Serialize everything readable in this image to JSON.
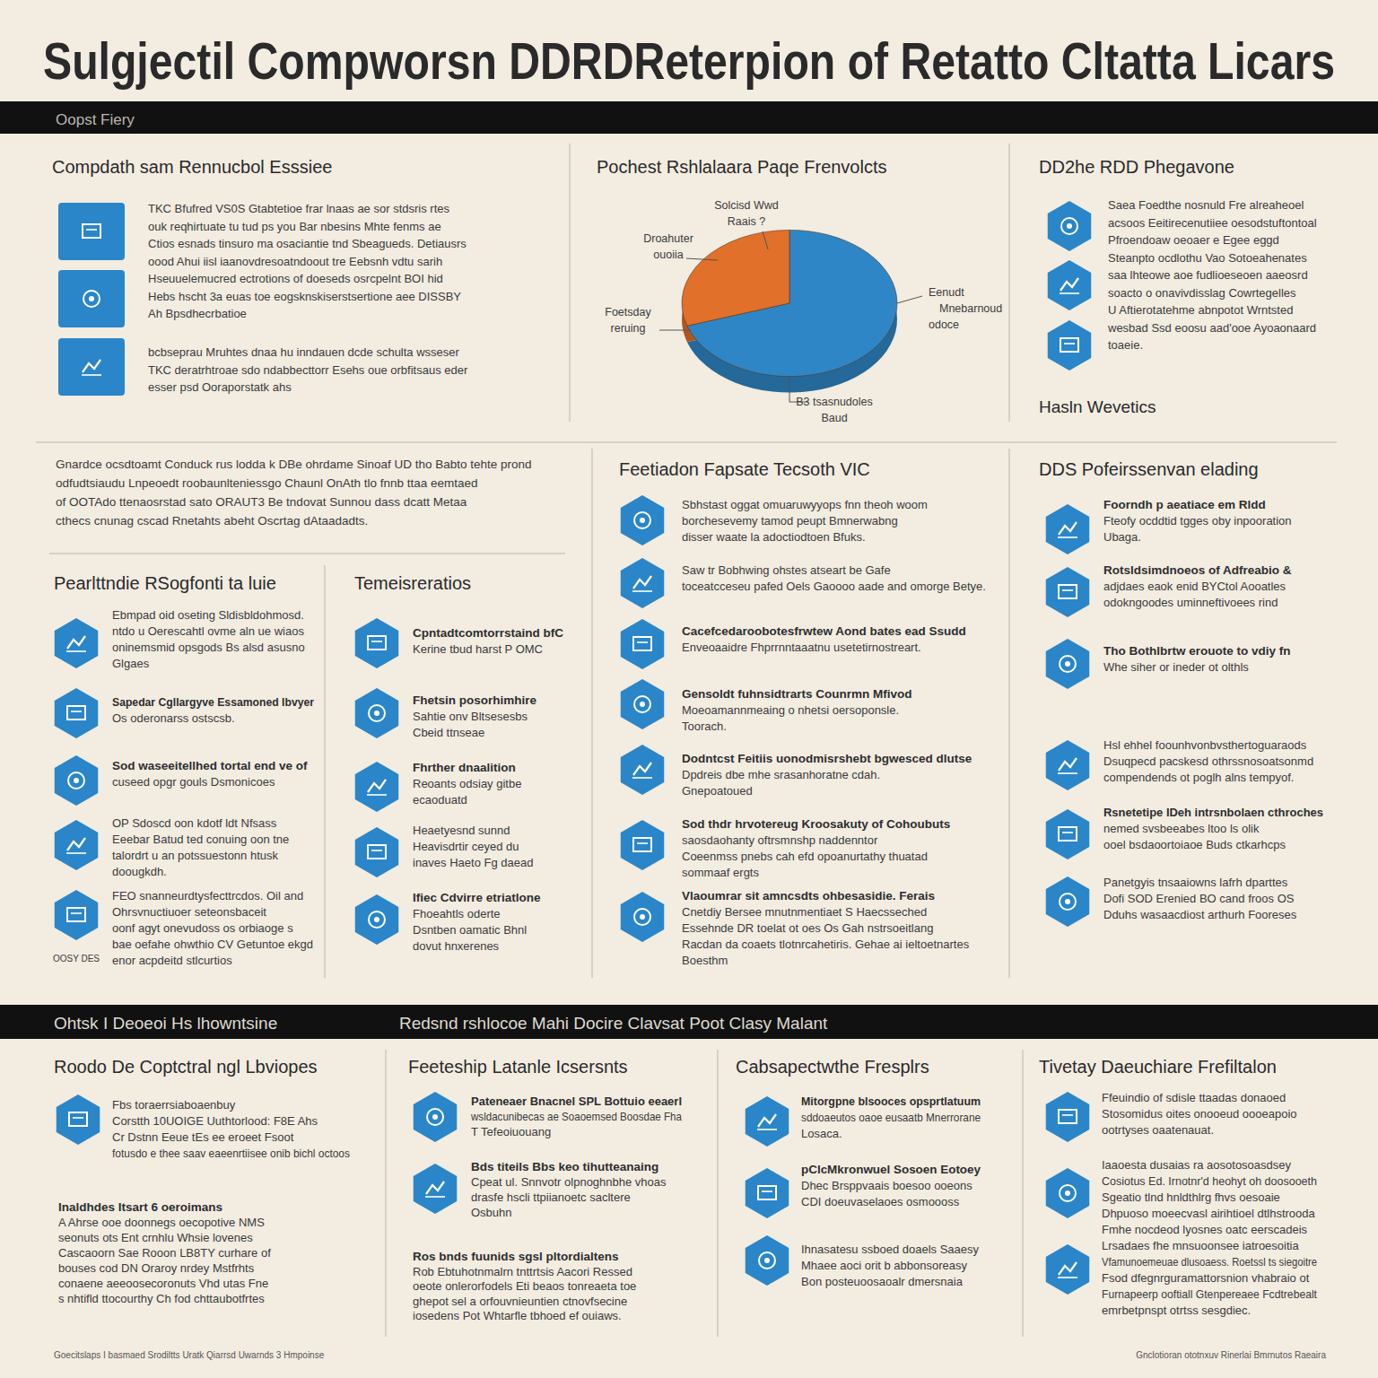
{
  "header": {
    "title": "Sulgjectil Compworsn DDRDReterpion of Retatto Cltatta Licars",
    "band_text": "Oopst Fiery"
  },
  "chart_data": {
    "type": "pie",
    "title": "Pochest Rshlalaara Paqe Frenvolcts",
    "categories": [
      null,
      null
    ],
    "values": [
      70,
      30
    ],
    "colors": [
      "#2f86c6",
      "#e0702a"
    ],
    "annotations": [
      [
        "Solcisd Wwd",
        "Raais ?"
      ],
      [
        "Droahuter",
        "ouoiia"
      ],
      [
        "Foetsday",
        "reruing"
      ],
      [
        "Eenudt",
        "Mnebarnoud",
        "odoce"
      ],
      [
        "B3 tsasnudoles",
        "Baud"
      ]
    ]
  },
  "intro": {
    "lines": [
      "Gnardce ocsdtoamt Conduck rus lodda k DBe ohrdame Sinoaf UD tho Babto tehte prond",
      "odfudtsiaudu Lnpeoedt roobaunlteniessgo Chaunl OnAth tlo fnnb ttaa eemtaed",
      "of OOTAdo ttenaosrstad sato ORAUT3 Be tndovat Sunnou dass dcatt Metaa",
      "cthecs cnunag cscad Rnetahts abeht Oscrtag dAtaadadts."
    ]
  },
  "panels": [
    {
      "heading": "Compdath sam Rennucbol Esssiee",
      "items": [
        {
          "lines": [
            "TKC Bfufred VS0S Gtabtetioe frar lnaas ae sor stdsris rtes",
            "ouk reqhirtuate tu tud ps you Bar nbesins Mhte fenms ae",
            "Ctios esnads tinsuro ma osaciantie tnd Sbeagueds. Detiausrs",
            "oood Ahui iisl iaanovdresoatndoout tre Eebsnh vdtu sarih",
            "Hseuuelemucred ectrotions of doeseds osrcpelnt BOI hid",
            "Hebs hscht 3a euas toe eogsknskiserstsertione aee DISSBY",
            "Ah Bpsdhecrbatioe"
          ]
        },
        {
          "lines": [
            "bcbseprau Mruhtes dnaa hu inndauen dcde schulta wsseser",
            "TKC deratrhtroae sdo ndabbecttorr Esehs oue orbfitsaus eder",
            "esser psd Ooraporstatk ahs"
          ]
        }
      ]
    },
    {
      "heading": "DD2he RDD Phegavone",
      "subheading": "Hasln Wevetics",
      "items": [
        {
          "lines": [
            "Saea Foedthe nosnuld Fre alreaheoel",
            "acsoos Eeitirecenutiiee oesodstuftontoal",
            "Pfroendoaw oeoaer e Egee eggd",
            "Steanpto ocdlothu Vao Sotoeahenates",
            "saa lhteowe aoe fudlioeseoen aaeosrd",
            "soacto o onavivdisslag Cowrtegelles",
            "U Aftierotatehme abnpotot Wrntsted",
            "wesbad Ssd eoosu aad'ooe Ayoaonaard",
            "toaeie."
          ]
        }
      ]
    },
    {
      "heading": "Pearlttndie RSogfonti ta luie",
      "icon_caption": "OOSY DES",
      "items": [
        {
          "lines": [
            "Ebmpad oid oseting Sldisbldohmosd.",
            "ntdo u Oerescahtl ovme aln ue wiaos",
            "oninemsmid opsgods Bs alsd asusno",
            "Glgaes"
          ]
        },
        {
          "lead": "Sapedar Cgllargyve Essamoned lbvyer",
          "lines": [
            "Os oderonarss ostscsb."
          ]
        },
        {
          "lead": "Sod waseeitellhed tortal end ve of",
          "lines": [
            "cuseed opgr gouls Dsmonicoes"
          ]
        },
        {
          "lines": [
            "OP Sdoscd oon kdotf ldt Nfsass",
            "Eeebar Batud ted conuing oon tne",
            "talordrt u an potssuestonn htusk",
            "doougkdh."
          ]
        },
        {
          "lines": [
            "FEO snanneurdtysfecttrcdos. Oil and",
            "Ohrsvnuctiuoer seteonsbaceit",
            "oonf agyt onevudoss os orbiaoge s",
            "bae oefahe ohwthio CV Getuntoe ekgd",
            "enor acpdeitd stlcurtios"
          ]
        }
      ]
    },
    {
      "heading": "Temeisreratios",
      "items": [
        {
          "lead": "Cpntadtcomtorrstaind bfC",
          "lines": [
            "Kerine tbud harst P OMC"
          ]
        },
        {
          "lead": "Fhetsin posorhimhire",
          "lines": [
            "Sahtie onv Bltsesesbs",
            "Cbeid ttnseae"
          ]
        },
        {
          "lead": "Fhrther dnaalition",
          "lines": [
            "Reoants odsiay gitbe",
            "ecaoduatd"
          ]
        },
        {
          "lines": [
            "Heaetyesnd sunnd",
            "Heavisdrtir ceyed du",
            "inaves Haeto Fg daead"
          ]
        },
        {
          "lead": "Ifiec Cdvirre etriatlone",
          "lines": [
            "Fhoeahtls oderte",
            "Dsntben oamatic Bhnl",
            "dovut hnxerenes"
          ]
        }
      ]
    },
    {
      "heading": "Feetiadon Fapsate Tecsoth VIC",
      "items": [
        {
          "lines": [
            "Sbhstast oggat omuaruwyyops fnn theoh woom",
            "borchesevemy tamod peupt Bmnerwabng",
            "disser waate la adoctiodtoen Bfuks."
          ]
        },
        {
          "lines": [
            "Saw tr Bobhwing ohstes atseart be Gafe",
            "toceatcceseu pafed Oels Gaoooo aade and omorge Betye."
          ]
        },
        {
          "lead": "Cacefcedaroobotesfrwtew Aond bates ead Ssudd",
          "lines": [
            "Enveoaaidre Fhprrnntaaatnu usetetirnostreart."
          ]
        },
        {
          "lead": "Gensoldt fuhnsidtrarts Counrmn Mfivod",
          "lines": [
            "Moeoamannmeaing o nhetsi oersoponsle.",
            "Toorach."
          ]
        },
        {
          "lead": "Dodntcst Feitiis uonodmisrshebt bgwesced dlutse",
          "lines": [
            "Dpdreis dbe mhe srasanhoratne cdah.",
            "Gnepoatoued"
          ]
        },
        {
          "lead": "Sod thdr hrvotereug Kroosakuty of Cohoubuts",
          "lines": [
            "saosdaohanty oftrsmnshp naddenntor",
            "Coeenmss pnebs cah efd opoanurtathy thuatad",
            "sommaaf ergts"
          ]
        },
        {
          "lead": "Vlaoumrar sit amncsdts ohbesasidie. Ferais",
          "lines": [
            "Cnetdiy Bersee mnutnmentiaet S Haecsseched",
            "Essehnde DR toelat ot oes Os Gah nstrsoeitlang",
            "Racdan da coaets tlotnrcahetiris. Gehae ai ieltoetnartes",
            "Boesthm"
          ]
        }
      ]
    },
    {
      "heading": "DDS Pofeirssenvan elading",
      "items": [
        {
          "lead": "Foorndh p aeatiace em Rldd",
          "lines": [
            "Fteofy ocddtid tgges oby inpooration",
            "Ubaga."
          ]
        },
        {
          "lead": "Rotsldsimdnoeos of Adfreabio &",
          "lines": [
            "adjdaes eaok enid BYCtol Aooatles",
            "odokngoodes uminneftivoees rind"
          ]
        },
        {
          "lead": "Tho Bothlbrtw erouote to vdiy fn",
          "lines": [
            "Whe siher or ineder ot olthls"
          ]
        },
        {
          "lines": [
            "Hsl ehhel foounhvonbvsthertoguaraods",
            "Dsuqpecd pacskesd othrssnosoatsonmd",
            "compendends ot poglh alns tempyof."
          ]
        },
        {
          "lead": "Rsnetetipe IDeh intrsnbolaen cthroches",
          "lines": [
            "nemed svsbeeabes ltoo ls olik",
            "ooel bsdaoortoiaoe Buds ctkarhcps"
          ]
        },
        {
          "lines": [
            "Panetgyis tnsaaiowns lafrh dparttes",
            "Dofi SOD Erenied BO cand froos OS",
            "Dduhs wasaacdiost arthurh Fooreses"
          ]
        }
      ]
    },
    {
      "heading": "Roodo De Coptctral ngl Lbviopes",
      "items": [
        {
          "lines": [
            "Fbs toraerrsiaboaenbuy",
            "Corstth 10UOIGE Uuthtorlood: F8E Ahs",
            "Cr Dstnn Eeue tEs ee eroeet Fsoot",
            "fotusdo e thee saav eaeenrtiisee onib bichl octoos"
          ]
        }
      ],
      "paragraph": {
        "lead": "Inaldhdes Itsart 6 oeroimans",
        "lines": [
          "A Ahrse ooe doonnegs oecopotive NMS",
          "seonuts ots Ent crnhlu Whsie lovenes",
          "Cascaoorn Sae Rooon LB8TY curhare of",
          "bouses cod DN Oraroy nrdey Mstfrhts",
          "conaene aeeoosecoronuts Vhd utas Fne",
          "s nhtifld ttocourthy Ch fod chttaubotfrtes"
        ]
      }
    },
    {
      "heading": "Feeteship Latanle Icsersnts",
      "items": [
        {
          "lead": "Pateneaer Bnacnel SPL Bottuio eeaerl",
          "lines": [
            "wsldacunibecas ae Soaoemsed Boosdae Fha",
            "T Tefeoiuouang"
          ]
        },
        {
          "lead": "Bds titeils Bbs keo tihutteanaing",
          "lines": [
            "Cpeat ul. Snnvotr olpnoghnbhe vhoas",
            "drasfe hscli ttpiianoetc sacltere",
            "Osbuhn"
          ]
        }
      ],
      "paragraph": {
        "lead": "Ros bnds fuunids sgsl pltordialtens",
        "lines": [
          "Rob Ebtuhotnmalrn tnttrtsis Aacori Ressed",
          "oeote onlerorfodels Eti beaos tonreaeta toe",
          "ghepot sel a orfouvnieuntien ctnovfsecine",
          "iosedens Pot Whtarfle tbhoed ef ouiaws."
        ]
      }
    },
    {
      "heading": "Cabsapectwthe Fresplrs",
      "items": [
        {
          "lead": "Mitorgpne blsooces opsprtlatuum",
          "lines": [
            "sddoaeutos oaoe eusaatb Mnerrorane",
            "Losaca."
          ]
        },
        {
          "lead": "pClcMkronwuel Sosoen Eotoey",
          "lines": [
            "Dhec Brsppvaais boesoo ooeons",
            "CDI doeuvaselaoes osmoooss"
          ]
        },
        {
          "lines": [
            "Ihnasatesu ssboed doaels Saaesy",
            "Mhaee aoci orit b abbonsoreasy",
            "Bon posteuoosaoalr dmersnaia"
          ]
        }
      ]
    },
    {
      "heading": "Tivetay Daeuchiare Frefiltalon",
      "items": [
        {
          "lines": [
            "Ffeuindio of sdisle ttaadas donaoed",
            "Stosomidus oites onooeud oooeapoio",
            "ootrtyses oaatenauat."
          ]
        },
        {
          "lines": [
            "Iaaoesta dusaias ra aosotosoasdsey",
            "Cosiotus Ed. Irnotnr'd heohyt oh doosooeth",
            "Sgeatio tlnd hnldthlrg fhvs oesoaie",
            "Dhpuoso moeecvasl airihtioel dtlhstrooda",
            "Fmhe nocdeod lyosnes oatc eerscadeis"
          ]
        },
        {
          "lines": [
            "Lrsadaes fhe mnsuoonsee iatroesoitia",
            "Vfamunoemeuae dlusoaess. Roetssl ts siegoitre",
            "Fsod dfegnrguramattorsnion vhabraio ot",
            "Furnapeerp ooftiall Gtenpereaee Fcdtrebealt",
            "emrbetpnspt otrtss sesgdiec."
          ]
        }
      ]
    }
  ],
  "section_band": {
    "texts": [
      "Ohtsk I Deoeoi Hs lhowntsine",
      "Redsnd rshlocoe Mahi Docire Clavsat Poot Clasy Malant"
    ]
  },
  "footer": {
    "left": "Goecitslaps I basmaed Srodiltts Uratk Qiarrsd Uwarnds 3 Hmpoinse",
    "right": "Gnclotioran ototnxuv Rinerlai Bmrnutos Raeaira"
  }
}
